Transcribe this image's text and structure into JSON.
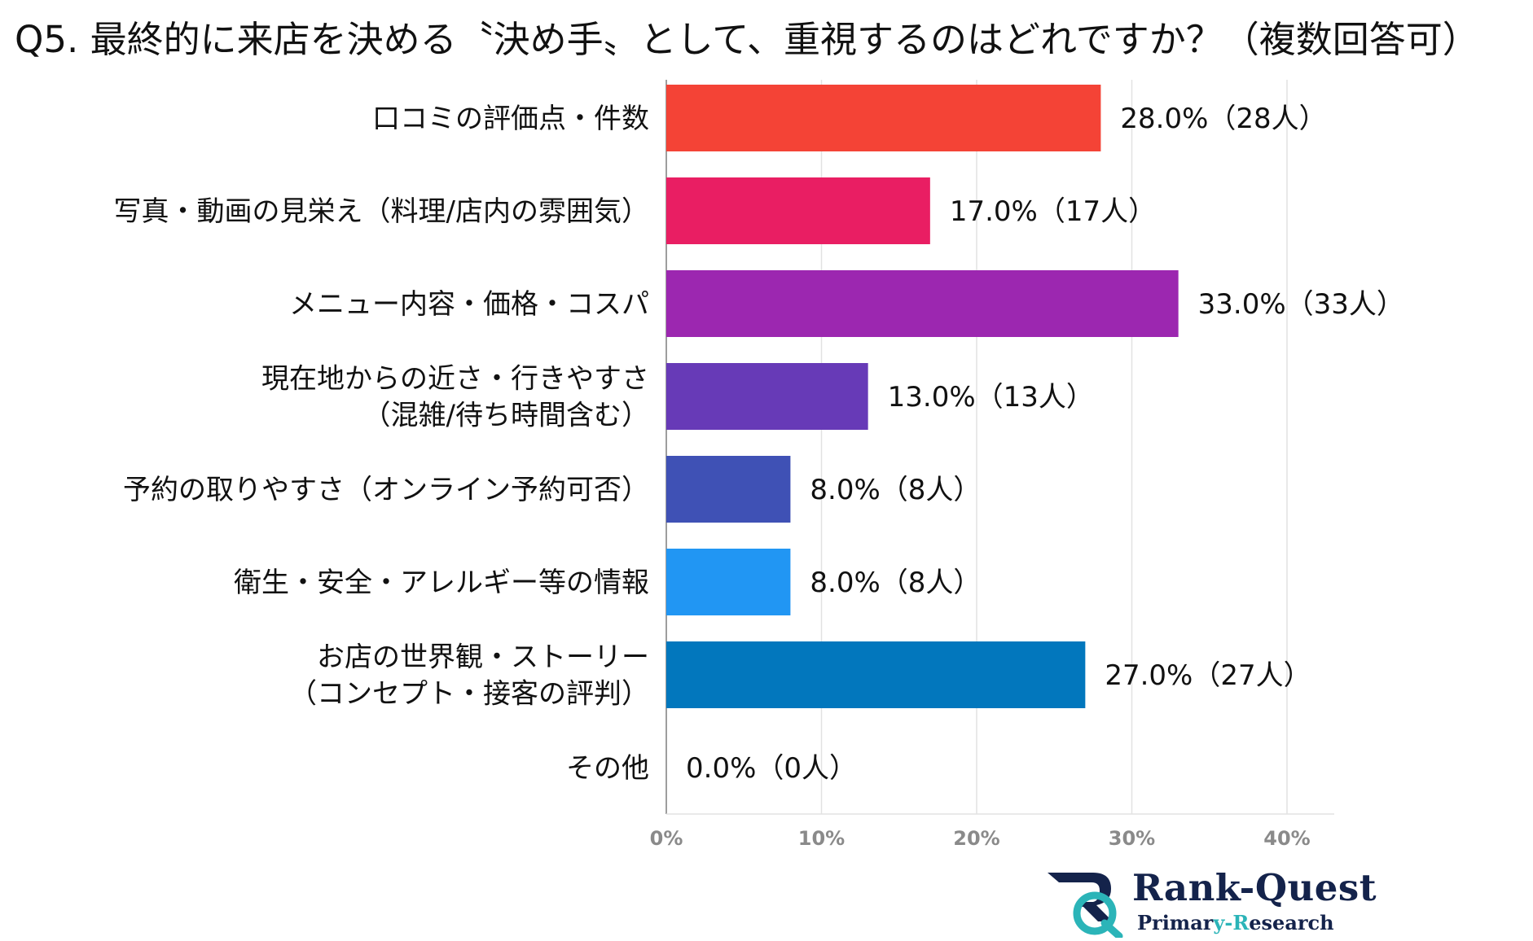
{
  "chart_data": {
    "type": "bar",
    "orientation": "horizontal",
    "title": "Q5. 最終的に来店を決める〝決め手〟として、重視するのはどれですか？（複数回答可）",
    "categories": [
      [
        "口コミの評価点・件数"
      ],
      [
        "写真・動画の見栄え（料理/店内の雰囲気）"
      ],
      [
        "メニュー内容・価格・コスパ"
      ],
      [
        "現在地からの近さ・行きやすさ",
        "（混雑/待ち時間含む）"
      ],
      [
        "予約の取りやすさ（オンライン予約可否）"
      ],
      [
        "衛生・安全・アレルギー等の情報"
      ],
      [
        "お店の世界観・ストーリー",
        "（コンセプト・接客の評判）"
      ],
      [
        "その他"
      ]
    ],
    "values": [
      28.0,
      17.0,
      33.0,
      13.0,
      8.0,
      8.0,
      27.0,
      0.0
    ],
    "value_labels": [
      "28.0%（28人）",
      "17.0%（17人）",
      "33.0%（33人）",
      "13.0%（13人）",
      "8.0%（8人）",
      "8.0%（8人）",
      "27.0%（27人）",
      "0.0%（0人）"
    ],
    "colors": [
      "#f44336",
      "#e91e63",
      "#9c27b0",
      "#673ab7",
      "#3f51b5",
      "#2196f3",
      "#0277bd",
      "#009688"
    ],
    "xticks": [
      0,
      10,
      20,
      30,
      40
    ],
    "xtick_labels": [
      "0%",
      "10%",
      "20%",
      "30%",
      "40%"
    ],
    "xlim": [
      0,
      43
    ],
    "grid": true,
    "legend": "none"
  },
  "branding": {
    "logo_icon": "rank-quest-logo-icon",
    "name": "Rank-Quest",
    "subtitle_part1": "Primar",
    "subtitle_part2": "y-R",
    "subtitle_part3": "esearch"
  }
}
